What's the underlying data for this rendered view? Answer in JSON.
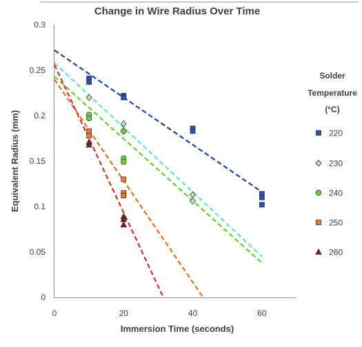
{
  "chart_data": {
    "type": "scatter",
    "title": "Change in Wire Radius Over Time",
    "xlabel": "Immersion Time (seconds)",
    "ylabel": "Equivalent Radius (mm)",
    "xlim": [
      0,
      70
    ],
    "ylim": [
      0,
      0.3
    ],
    "xticks": [
      "0",
      "20",
      "40",
      "60"
    ],
    "xtick_values": [
      0,
      20,
      40,
      60
    ],
    "yticks": [
      "0",
      "0.05",
      "0.1",
      "0.15",
      "0.2",
      "0.25",
      "0.3"
    ],
    "ytick_values": [
      0,
      0.05,
      0.1,
      0.15,
      0.2,
      0.25,
      0.3
    ],
    "grid": false,
    "legend": {
      "title": [
        "Solder",
        "Temperature",
        "(°C)"
      ],
      "position": "right"
    },
    "series": [
      {
        "name": "220",
        "marker": "square",
        "color": "#2E4FB8",
        "points": [
          [
            10,
            0.241
          ],
          [
            10,
            0.237
          ],
          [
            20,
            0.222
          ],
          [
            20,
            0.22
          ],
          [
            40,
            0.186
          ],
          [
            40,
            0.183
          ],
          [
            60,
            0.114
          ],
          [
            60,
            0.11
          ],
          [
            60,
            0.102
          ]
        ],
        "trend": {
          "x": [
            0,
            60
          ],
          "y": [
            0.272,
            0.116
          ],
          "color": "#1F3FA0"
        }
      },
      {
        "name": "230",
        "marker": "diamond",
        "color": "#BFE0B0",
        "points": [
          [
            10,
            0.22
          ],
          [
            20,
            0.191
          ],
          [
            20,
            0.183
          ],
          [
            40,
            0.113
          ],
          [
            40,
            0.106
          ]
        ],
        "trend": {
          "x": [
            0,
            60
          ],
          "y": [
            0.258,
            0.045
          ],
          "color": "#5FE8B8"
        }
      },
      {
        "name": "240",
        "marker": "circle",
        "color": "#6CD23C",
        "points": [
          [
            10,
            0.201
          ],
          [
            10,
            0.197
          ],
          [
            20,
            0.183
          ],
          [
            20,
            0.153
          ],
          [
            20,
            0.149
          ]
        ],
        "trend": {
          "x": [
            0,
            60
          ],
          "y": [
            0.243,
            0.038
          ],
          "color": "#5ED12A"
        }
      },
      {
        "name": "250",
        "marker": "square",
        "color": "#E97D2F",
        "points": [
          [
            10,
            0.183
          ],
          [
            10,
            0.178
          ],
          [
            20,
            0.13
          ],
          [
            20,
            0.115
          ],
          [
            20,
            0.112
          ]
        ],
        "trend": {
          "x": [
            0,
            43
          ],
          "y": [
            0.24,
            0
          ],
          "color": "#E56E17"
        }
      },
      {
        "name": "260",
        "marker": "triangle",
        "color": "#7B1F1F",
        "points": [
          [
            10,
            0.171
          ],
          [
            10,
            0.168
          ],
          [
            20,
            0.089
          ],
          [
            20,
            0.086
          ],
          [
            20,
            0.08
          ]
        ],
        "trend": {
          "x": [
            0,
            31.5
          ],
          "y": [
            0.256,
            0
          ],
          "color": "#D82C2C"
        }
      }
    ]
  }
}
